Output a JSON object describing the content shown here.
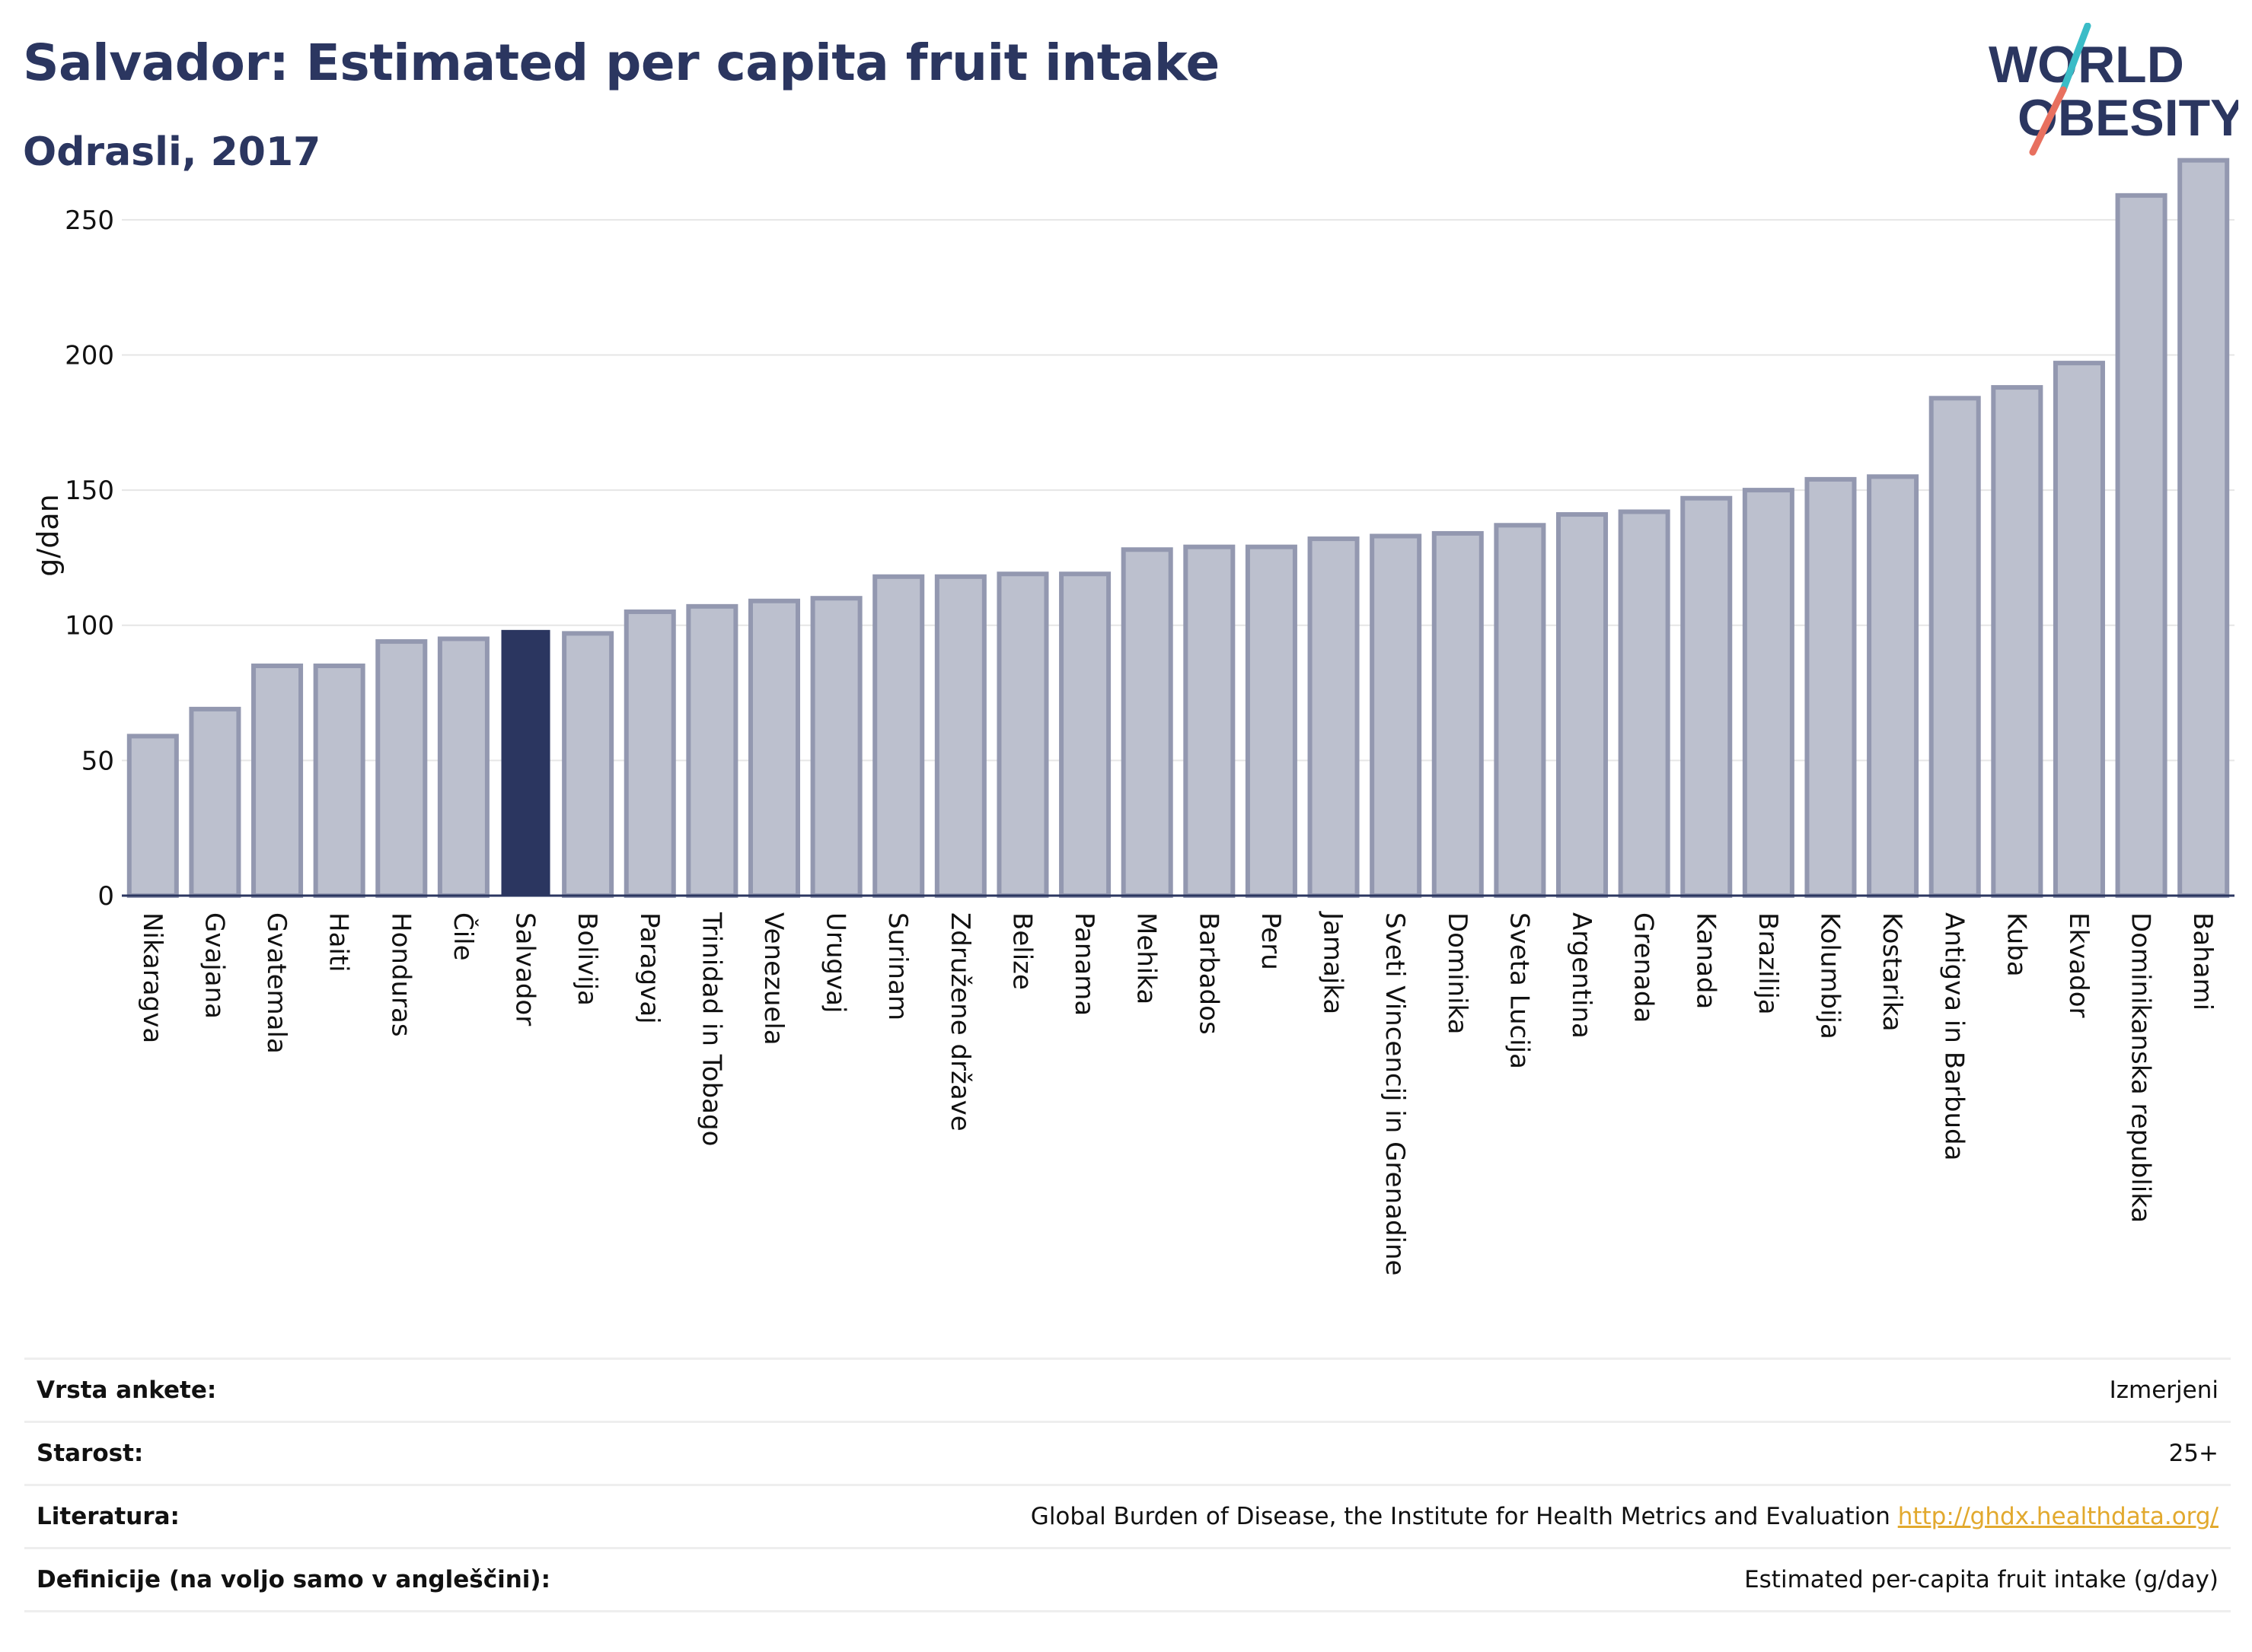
{
  "header": {
    "title": "Salvador: Estimated per capita fruit intake",
    "subtitle": "Odrasli, 2017"
  },
  "logo": {
    "line1": "WORLD",
    "line2": "OBESITY"
  },
  "colors": {
    "highlight": "#2b3660",
    "bar_fill": "#bcc0ce",
    "bar_stroke": "#9398b0",
    "grid": "#e6e6e6",
    "axis": "#2b3660",
    "logo_teal": "#3bbcc7",
    "logo_coral": "#e8705f",
    "link": "#e2a92e"
  },
  "chart_data": {
    "type": "bar",
    "ylabel": "g/dan",
    "ylim": [
      0,
      275
    ],
    "yticks": [
      0,
      50,
      100,
      150,
      200,
      250
    ],
    "grid": true,
    "highlight": "Salvador",
    "categories": [
      "Nikaragva",
      "Gvajana",
      "Gvatemala",
      "Haiti",
      "Honduras",
      "Čile",
      "Salvador",
      "Bolivija",
      "Paragvaj",
      "Trinidad in Tobago",
      "Venezuela",
      "Urugvaj",
      "Surinam",
      "Združene države",
      "Belize",
      "Panama",
      "Mehika",
      "Barbados",
      "Peru",
      "Jamajka",
      "Sveti Vincencij in Grenadine",
      "Dominika",
      "Sveta Lucija",
      "Argentina",
      "Grenada",
      "Kanada",
      "Brazilija",
      "Kolumbija",
      "Kostarika",
      "Antigva in Barbuda",
      "Kuba",
      "Ekvador",
      "Dominikanska republika",
      "Bahami"
    ],
    "values": [
      59,
      69,
      85,
      85,
      94,
      95,
      98,
      97,
      105,
      107,
      109,
      110,
      118,
      118,
      119,
      119,
      128,
      129,
      129,
      132,
      133,
      134,
      137,
      141,
      142,
      147,
      150,
      154,
      155,
      184,
      188,
      197,
      259,
      272
    ]
  },
  "info": [
    {
      "label": "Vrsta ankete:",
      "value": "Izmerjeni",
      "link": ""
    },
    {
      "label": "Starost:",
      "value": "25+",
      "link": ""
    },
    {
      "label": "Literatura:",
      "value": "Global Burden of Disease, the Institute for Health Metrics and Evaluation",
      "link": "http://ghdx.healthdata.org/"
    },
    {
      "label": "Definicije (na voljo samo v angleščini):",
      "value": "Estimated per-capita fruit intake (g/day)",
      "link": ""
    }
  ]
}
